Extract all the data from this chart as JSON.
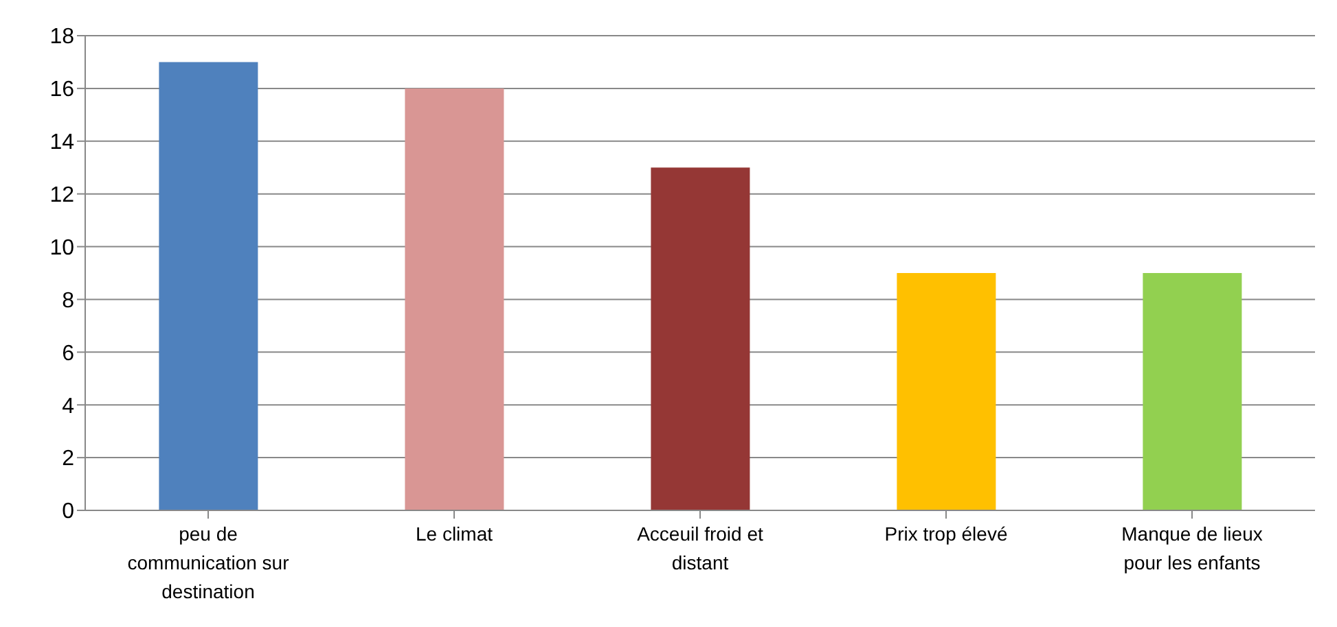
{
  "chart_data": {
    "type": "bar",
    "categories": [
      "peu de communication sur destination",
      "Le climat",
      "Acceuil froid et distant",
      "Prix trop élevé",
      "Manque de lieux pour les enfants"
    ],
    "values": [
      17,
      16,
      13,
      9,
      9
    ],
    "colors": [
      "#4f81bd",
      "#d99694",
      "#953735",
      "#ffc000",
      "#92d050"
    ],
    "ylim": [
      0,
      18
    ],
    "yticks": [
      0,
      2,
      4,
      6,
      8,
      10,
      12,
      14,
      16,
      18
    ],
    "grid": "y"
  }
}
